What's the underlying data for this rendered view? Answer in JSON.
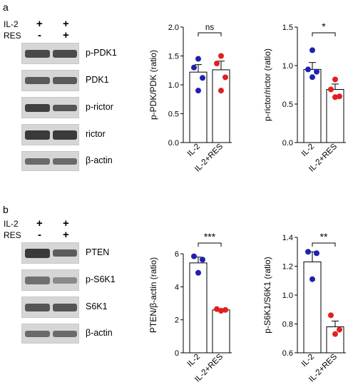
{
  "panel_a": {
    "letter": "a",
    "conditions": {
      "row1_label": "IL-2",
      "row2_label": "RES",
      "lane1_row1": "+",
      "lane1_row2": "-",
      "lane2_row1": "+",
      "lane2_row2": "+"
    },
    "blots": [
      "p-PDK1",
      "PDK1",
      "p-rictor",
      "rictor",
      "β-actin"
    ]
  },
  "panel_b": {
    "letter": "b",
    "conditions": {
      "row1_label": "IL-2",
      "row2_label": "RES",
      "lane1_row1": "+",
      "lane1_row2": "-",
      "lane2_row1": "+",
      "lane2_row2": "+"
    },
    "blots": [
      "PTEN",
      "p-S6K1",
      "S6K1",
      "β-actin"
    ]
  },
  "colors": {
    "il2": "#2020b0",
    "il2_res": "#e02020"
  },
  "chart_data": [
    {
      "type": "bar",
      "id": "pPDK",
      "categories": [
        "IL-2",
        "IL-2+RES"
      ],
      "values": [
        1.22,
        1.26
      ],
      "errors": [
        0.13,
        0.15
      ],
      "points": [
        [
          1.45,
          1.3,
          1.12,
          0.9
        ],
        [
          1.5,
          1.37,
          1.13,
          0.9
        ]
      ],
      "ylabel": "p-PDK/PDK (ratio)",
      "ylim": [
        0.0,
        2.0
      ],
      "ticks": [
        "0.0",
        "0.5",
        "1.0",
        "1.5",
        "2.0"
      ],
      "tickvals": [
        0,
        0.5,
        1.0,
        1.5,
        2.0
      ],
      "sig": "ns"
    },
    {
      "type": "bar",
      "id": "prictor",
      "categories": [
        "IL-2",
        "IL-2+RES"
      ],
      "values": [
        0.95,
        0.69
      ],
      "errors": [
        0.09,
        0.07
      ],
      "points": [
        [
          1.2,
          0.95,
          0.92,
          0.85
        ],
        [
          0.82,
          0.69,
          0.6,
          0.59
        ]
      ],
      "ylabel": "p-rictor/rictor (ratio)",
      "ylim": [
        0.0,
        1.5
      ],
      "ticks": [
        "0.0",
        "0.5",
        "1.0",
        "1.5"
      ],
      "tickvals": [
        0,
        0.5,
        1.0,
        1.5
      ],
      "sig": "*"
    },
    {
      "type": "bar",
      "id": "PTEN",
      "categories": [
        "IL-2",
        "IL-2+RES"
      ],
      "values": [
        5.45,
        2.6
      ],
      "errors": [
        0.35,
        0.06
      ],
      "points": [
        [
          5.85,
          5.65,
          4.85
        ],
        [
          2.65,
          2.6,
          2.55
        ]
      ],
      "ylabel": "PTEN/β-actin (ratio)",
      "ylim": [
        0,
        7
      ],
      "ticks": [
        "0",
        "2",
        "4",
        "6"
      ],
      "tickvals": [
        0,
        2,
        4,
        6
      ],
      "sig": "***"
    },
    {
      "type": "bar",
      "id": "pS6K1",
      "categories": [
        "IL-2",
        "IL-2+RES"
      ],
      "values": [
        1.23,
        0.78
      ],
      "errors": [
        0.07,
        0.04
      ],
      "points": [
        [
          1.3,
          1.29,
          1.11
        ],
        [
          0.86,
          0.76,
          0.73
        ]
      ],
      "ylabel": "p-S6K1/S6K1 (ratio)",
      "ylim": [
        0.6,
        1.4
      ],
      "ticks": [
        "0.6",
        "0.8",
        "1.0",
        "1.2",
        "1.4"
      ],
      "tickvals": [
        0.6,
        0.8,
        1.0,
        1.2,
        1.4
      ],
      "sig": "**"
    }
  ]
}
